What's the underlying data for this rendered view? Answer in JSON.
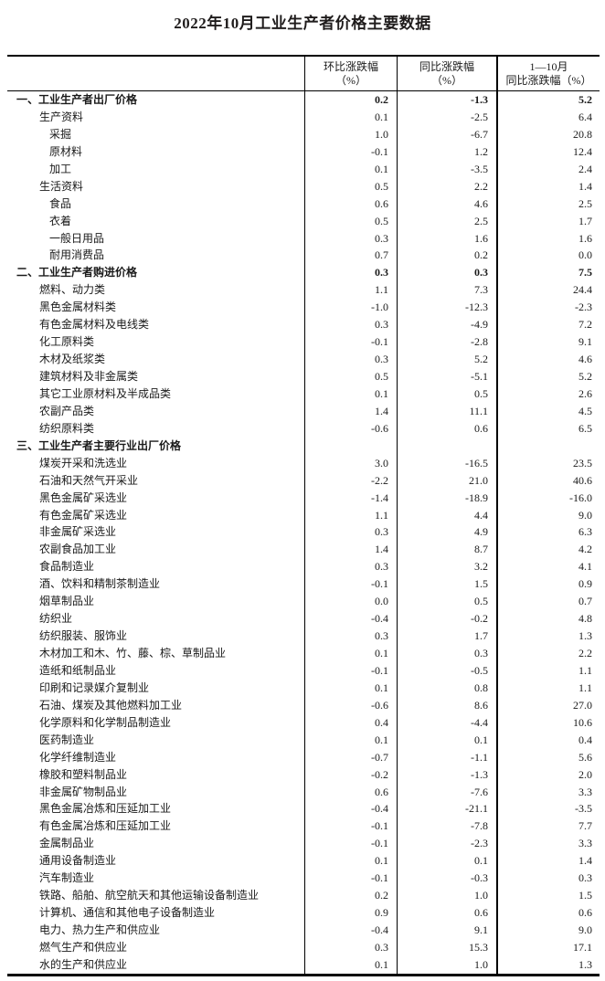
{
  "page": {
    "title": "2022年10月工业生产者价格主要数据"
  },
  "colors": {
    "text": "#1a1a1a",
    "border": "#000000",
    "background": "#ffffff"
  },
  "table": {
    "columns": [
      {
        "line1": "环比涨跌幅",
        "line2": "（%）"
      },
      {
        "line1": "同比涨跌幅",
        "line2": "（%）"
      },
      {
        "line1": "1—10月",
        "line2": "同比涨跌幅（%）"
      }
    ],
    "rows": [
      {
        "label": "一、工业生产者出厂价格",
        "indent": 0,
        "bold": true,
        "values": [
          "0.2",
          "-1.3",
          "5.2"
        ]
      },
      {
        "label": "生产资料",
        "indent": 1,
        "bold": false,
        "values": [
          "0.1",
          "-2.5",
          "6.4"
        ]
      },
      {
        "label": "采掘",
        "indent": 2,
        "bold": false,
        "values": [
          "1.0",
          "-6.7",
          "20.8"
        ]
      },
      {
        "label": "原材料",
        "indent": 2,
        "bold": false,
        "values": [
          "-0.1",
          "1.2",
          "12.4"
        ]
      },
      {
        "label": "加工",
        "indent": 2,
        "bold": false,
        "values": [
          "0.1",
          "-3.5",
          "2.4"
        ]
      },
      {
        "label": "生活资料",
        "indent": 1,
        "bold": false,
        "values": [
          "0.5",
          "2.2",
          "1.4"
        ]
      },
      {
        "label": "食品",
        "indent": 2,
        "bold": false,
        "values": [
          "0.6",
          "4.6",
          "2.5"
        ]
      },
      {
        "label": "衣着",
        "indent": 2,
        "bold": false,
        "values": [
          "0.5",
          "2.5",
          "1.7"
        ]
      },
      {
        "label": "一般日用品",
        "indent": 2,
        "bold": false,
        "values": [
          "0.3",
          "1.6",
          "1.6"
        ]
      },
      {
        "label": "耐用消费品",
        "indent": 2,
        "bold": false,
        "values": [
          "0.7",
          "0.2",
          "0.0"
        ]
      },
      {
        "label": "二、工业生产者购进价格",
        "indent": 0,
        "bold": true,
        "values": [
          "0.3",
          "0.3",
          "7.5"
        ]
      },
      {
        "label": "燃料、动力类",
        "indent": 1,
        "bold": false,
        "values": [
          "1.1",
          "7.3",
          "24.4"
        ]
      },
      {
        "label": "黑色金属材料类",
        "indent": 1,
        "bold": false,
        "values": [
          "-1.0",
          "-12.3",
          "-2.3"
        ]
      },
      {
        "label": "有色金属材料及电线类",
        "indent": 1,
        "bold": false,
        "values": [
          "0.3",
          "-4.9",
          "7.2"
        ]
      },
      {
        "label": "化工原料类",
        "indent": 1,
        "bold": false,
        "values": [
          "-0.1",
          "-2.8",
          "9.1"
        ]
      },
      {
        "label": "木材及纸浆类",
        "indent": 1,
        "bold": false,
        "values": [
          "0.3",
          "5.2",
          "4.6"
        ]
      },
      {
        "label": "建筑材料及非金属类",
        "indent": 1,
        "bold": false,
        "values": [
          "0.5",
          "-5.1",
          "5.2"
        ]
      },
      {
        "label": "其它工业原材料及半成品类",
        "indent": 1,
        "bold": false,
        "values": [
          "0.1",
          "0.5",
          "2.6"
        ]
      },
      {
        "label": "农副产品类",
        "indent": 1,
        "bold": false,
        "values": [
          "1.4",
          "11.1",
          "4.5"
        ]
      },
      {
        "label": "纺织原料类",
        "indent": 1,
        "bold": false,
        "values": [
          "-0.6",
          "0.6",
          "6.5"
        ]
      },
      {
        "label": "三、工业生产者主要行业出厂价格",
        "indent": 0,
        "bold": true,
        "values": [
          "",
          "",
          ""
        ]
      },
      {
        "label": "煤炭开采和洗选业",
        "indent": 1,
        "bold": false,
        "values": [
          "3.0",
          "-16.5",
          "23.5"
        ]
      },
      {
        "label": "石油和天然气开采业",
        "indent": 1,
        "bold": false,
        "values": [
          "-2.2",
          "21.0",
          "40.6"
        ]
      },
      {
        "label": "黑色金属矿采选业",
        "indent": 1,
        "bold": false,
        "values": [
          "-1.4",
          "-18.9",
          "-16.0"
        ]
      },
      {
        "label": "有色金属矿采选业",
        "indent": 1,
        "bold": false,
        "values": [
          "1.1",
          "4.4",
          "9.0"
        ]
      },
      {
        "label": "非金属矿采选业",
        "indent": 1,
        "bold": false,
        "values": [
          "0.3",
          "4.9",
          "6.3"
        ]
      },
      {
        "label": "农副食品加工业",
        "indent": 1,
        "bold": false,
        "values": [
          "1.4",
          "8.7",
          "4.2"
        ]
      },
      {
        "label": "食品制造业",
        "indent": 1,
        "bold": false,
        "values": [
          "0.3",
          "3.2",
          "4.1"
        ]
      },
      {
        "label": "酒、饮料和精制茶制造业",
        "indent": 1,
        "bold": false,
        "values": [
          "-0.1",
          "1.5",
          "0.9"
        ]
      },
      {
        "label": "烟草制品业",
        "indent": 1,
        "bold": false,
        "values": [
          "0.0",
          "0.5",
          "0.7"
        ]
      },
      {
        "label": "纺织业",
        "indent": 1,
        "bold": false,
        "values": [
          "-0.4",
          "-0.2",
          "4.8"
        ]
      },
      {
        "label": "纺织服装、服饰业",
        "indent": 1,
        "bold": false,
        "values": [
          "0.3",
          "1.7",
          "1.3"
        ]
      },
      {
        "label": "木材加工和木、竹、藤、棕、草制品业",
        "indent": 1,
        "bold": false,
        "values": [
          "0.1",
          "0.3",
          "2.2"
        ]
      },
      {
        "label": "造纸和纸制品业",
        "indent": 1,
        "bold": false,
        "values": [
          "-0.1",
          "-0.5",
          "1.1"
        ]
      },
      {
        "label": "印刷和记录媒介复制业",
        "indent": 1,
        "bold": false,
        "values": [
          "0.1",
          "0.8",
          "1.1"
        ]
      },
      {
        "label": "石油、煤炭及其他燃料加工业",
        "indent": 1,
        "bold": false,
        "values": [
          "-0.6",
          "8.6",
          "27.0"
        ]
      },
      {
        "label": "化学原料和化学制品制造业",
        "indent": 1,
        "bold": false,
        "values": [
          "0.4",
          "-4.4",
          "10.6"
        ]
      },
      {
        "label": "医药制造业",
        "indent": 1,
        "bold": false,
        "values": [
          "0.1",
          "0.1",
          "0.4"
        ]
      },
      {
        "label": "化学纤维制造业",
        "indent": 1,
        "bold": false,
        "values": [
          "-0.7",
          "-1.1",
          "5.6"
        ]
      },
      {
        "label": "橡胶和塑料制品业",
        "indent": 1,
        "bold": false,
        "values": [
          "-0.2",
          "-1.3",
          "2.0"
        ]
      },
      {
        "label": "非金属矿物制品业",
        "indent": 1,
        "bold": false,
        "values": [
          "0.6",
          "-7.6",
          "3.3"
        ]
      },
      {
        "label": "黑色金属冶炼和压延加工业",
        "indent": 1,
        "bold": false,
        "values": [
          "-0.4",
          "-21.1",
          "-3.5"
        ]
      },
      {
        "label": "有色金属冶炼和压延加工业",
        "indent": 1,
        "bold": false,
        "values": [
          "-0.1",
          "-7.8",
          "7.7"
        ]
      },
      {
        "label": "金属制品业",
        "indent": 1,
        "bold": false,
        "values": [
          "-0.1",
          "-2.3",
          "3.3"
        ]
      },
      {
        "label": "通用设备制造业",
        "indent": 1,
        "bold": false,
        "values": [
          "0.1",
          "0.1",
          "1.4"
        ]
      },
      {
        "label": "汽车制造业",
        "indent": 1,
        "bold": false,
        "values": [
          "-0.1",
          "-0.3",
          "0.3"
        ]
      },
      {
        "label": "铁路、船舶、航空航天和其他运输设备制造业",
        "indent": 1,
        "bold": false,
        "values": [
          "0.2",
          "1.0",
          "1.5"
        ]
      },
      {
        "label": "计算机、通信和其他电子设备制造业",
        "indent": 1,
        "bold": false,
        "values": [
          "0.9",
          "0.6",
          "0.6"
        ]
      },
      {
        "label": "电力、热力生产和供应业",
        "indent": 1,
        "bold": false,
        "values": [
          "-0.4",
          "9.1",
          "9.0"
        ]
      },
      {
        "label": "燃气生产和供应业",
        "indent": 1,
        "bold": false,
        "values": [
          "0.3",
          "15.3",
          "17.1"
        ]
      },
      {
        "label": "水的生产和供应业",
        "indent": 1,
        "bold": false,
        "values": [
          "0.1",
          "1.0",
          "1.3"
        ]
      }
    ]
  }
}
